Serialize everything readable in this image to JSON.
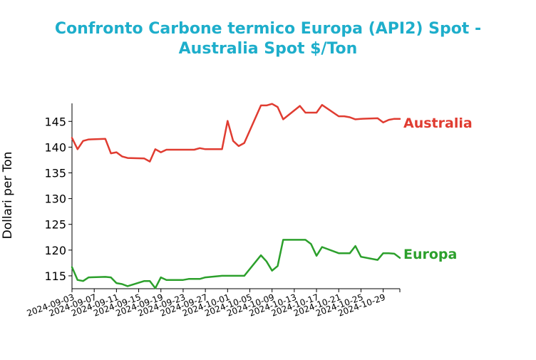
{
  "chart_data": {
    "type": "line",
    "title_lines": [
      "Confronto Carbone termico Europa (API2) Spot -",
      "Australia Spot $/Ton"
    ],
    "xlabel": "",
    "ylabel": "Dollari per Ton",
    "ylim": [
      112.5,
      148.5
    ],
    "yticks": [
      115,
      120,
      125,
      130,
      135,
      140,
      145
    ],
    "xlim": [
      "2024-09-03",
      "2024-11-01"
    ],
    "xticks": [
      "2024-09-03",
      "2024-09-07",
      "2024-09-11",
      "2024-09-15",
      "2024-09-19",
      "2024-09-23",
      "2024-09-27",
      "2024-10-01",
      "2024-10-05",
      "2024-10-09",
      "2024-10-13",
      "2024-10-17",
      "2024-10-21",
      "2024-10-25",
      "2024-10-29"
    ],
    "grid": false,
    "legend": "inline-right",
    "colors": {
      "Australia": "#e03c31",
      "Europa": "#2ca02c",
      "title": "#1eaecb"
    },
    "series": [
      {
        "name": "Australia",
        "x": [
          "2024-09-03",
          "2024-09-04",
          "2024-09-05",
          "2024-09-06",
          "2024-09-09",
          "2024-09-10",
          "2024-09-11",
          "2024-09-12",
          "2024-09-13",
          "2024-09-16",
          "2024-09-17",
          "2024-09-18",
          "2024-09-19",
          "2024-09-20",
          "2024-09-23",
          "2024-09-24",
          "2024-09-25",
          "2024-09-26",
          "2024-09-27",
          "2024-09-30",
          "2024-10-01",
          "2024-10-02",
          "2024-10-03",
          "2024-10-04",
          "2024-10-07",
          "2024-10-08",
          "2024-10-09",
          "2024-10-10",
          "2024-10-11",
          "2024-10-14",
          "2024-10-15",
          "2024-10-16",
          "2024-10-17",
          "2024-10-18",
          "2024-10-21",
          "2024-10-22",
          "2024-10-23",
          "2024-10-24",
          "2024-10-25",
          "2024-10-28",
          "2024-10-29",
          "2024-10-30",
          "2024-10-31",
          "2024-11-01"
        ],
        "values": [
          141.8,
          139.6,
          141.2,
          141.5,
          141.6,
          138.8,
          139.0,
          138.2,
          137.9,
          137.8,
          137.2,
          139.6,
          139.0,
          139.5,
          139.5,
          139.5,
          139.5,
          139.8,
          139.6,
          139.6,
          145.1,
          141.2,
          140.2,
          140.8,
          148.1,
          148.1,
          148.4,
          147.8,
          145.4,
          148.0,
          146.7,
          146.7,
          146.7,
          148.2,
          146.0,
          146.0,
          145.8,
          145.4,
          145.5,
          145.6,
          144.8,
          145.3,
          145.5,
          145.5
        ]
      },
      {
        "name": "Europa",
        "x": [
          "2024-09-03",
          "2024-09-04",
          "2024-09-05",
          "2024-09-06",
          "2024-09-09",
          "2024-09-10",
          "2024-09-11",
          "2024-09-12",
          "2024-09-13",
          "2024-09-16",
          "2024-09-17",
          "2024-09-18",
          "2024-09-19",
          "2024-09-20",
          "2024-09-23",
          "2024-09-24",
          "2024-09-25",
          "2024-09-26",
          "2024-09-27",
          "2024-09-30",
          "2024-10-01",
          "2024-10-02",
          "2024-10-03",
          "2024-10-04",
          "2024-10-07",
          "2024-10-08",
          "2024-10-09",
          "2024-10-10",
          "2024-10-11",
          "2024-10-14",
          "2024-10-15",
          "2024-10-16",
          "2024-10-17",
          "2024-10-18",
          "2024-10-21",
          "2024-10-22",
          "2024-10-23",
          "2024-10-24",
          "2024-10-25",
          "2024-10-28",
          "2024-10-29",
          "2024-10-30",
          "2024-10-31",
          "2024-11-01"
        ],
        "values": [
          116.7,
          114.2,
          114.0,
          114.7,
          114.8,
          114.7,
          113.6,
          113.4,
          113.0,
          114.0,
          114.0,
          112.6,
          114.7,
          114.2,
          114.2,
          114.4,
          114.4,
          114.4,
          114.7,
          115.0,
          115.0,
          115.0,
          115.0,
          115.0,
          119.0,
          117.8,
          116.0,
          116.9,
          122.0,
          122.0,
          122.0,
          121.2,
          118.9,
          120.6,
          119.4,
          119.4,
          119.4,
          120.8,
          118.7,
          118.1,
          119.4,
          119.4,
          119.3,
          118.5
        ]
      }
    ],
    "end_labels": {
      "Australia": "Australia",
      "Europa": "Europa"
    }
  }
}
